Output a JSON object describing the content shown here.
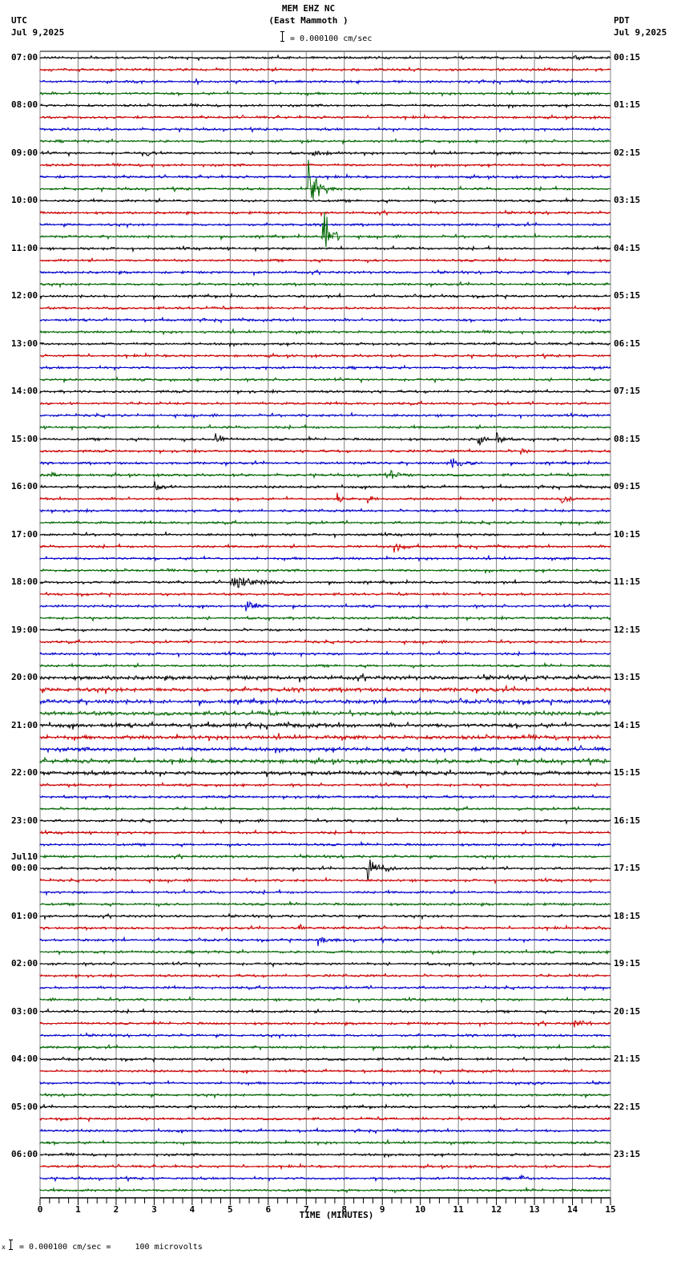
{
  "header": {
    "station": "MEM EHZ NC",
    "location": "(East Mammoth )",
    "scale_text": "= 0.000100 cm/sec",
    "left_tz": "UTC",
    "left_date": "Jul 9,2025",
    "right_tz": "PDT",
    "right_date": "Jul 9,2025"
  },
  "footer": {
    "xlabel": "TIME (MINUTES)",
    "scale_prefix": "x",
    "scale_text": "= 0.000100 cm/sec =     100 microvolts"
  },
  "date_change_label": "Jul10",
  "colors": {
    "trace_cycle": [
      "#000000",
      "#cc0000",
      "#0000cc",
      "#006600"
    ],
    "grid": "#808080",
    "axis": "#000000"
  },
  "chart_data": {
    "type": "line",
    "title": "MEM EHZ NC (East Mammoth ) helicorder",
    "xlabel": "TIME (MINUTES)",
    "ylabel": "",
    "xlim": [
      0,
      15
    ],
    "x_ticks": [
      "0",
      "1",
      "2",
      "3",
      "4",
      "5",
      "6",
      "7",
      "8",
      "9",
      "10",
      "11",
      "12",
      "13",
      "14",
      "15"
    ],
    "traces_per_hour": 4,
    "trace_minutes": 15,
    "left_labels_utc": [
      "07:00",
      "08:00",
      "09:00",
      "10:00",
      "11:00",
      "12:00",
      "13:00",
      "14:00",
      "15:00",
      "16:00",
      "17:00",
      "18:00",
      "19:00",
      "20:00",
      "21:00",
      "22:00",
      "23:00",
      "00:00",
      "01:00",
      "02:00",
      "03:00",
      "04:00",
      "05:00",
      "06:00"
    ],
    "right_labels_pdt": [
      "00:15",
      "01:15",
      "02:15",
      "03:15",
      "04:15",
      "05:15",
      "06:15",
      "07:15",
      "08:15",
      "09:15",
      "10:15",
      "11:15",
      "12:15",
      "13:15",
      "14:15",
      "15:15",
      "16:15",
      "17:15",
      "18:15",
      "19:15",
      "20:15",
      "21:15",
      "22:15",
      "23:15"
    ],
    "amplitude_scale": "0.000100 cm/sec = 100 microvolts",
    "series": [
      {
        "name": "trace colors cycle",
        "values": [
          "black",
          "red",
          "blue",
          "green"
        ]
      }
    ],
    "events": [
      {
        "trace": 0,
        "minute": 14.0,
        "amp": 5,
        "dur": 0.5
      },
      {
        "trace": 8,
        "minute": 2.8,
        "amp": 4,
        "dur": 0.5
      },
      {
        "trace": 8,
        "minute": 7.2,
        "amp": 4,
        "dur": 0.8
      },
      {
        "trace": 11,
        "minute": 7.05,
        "amp": 55,
        "dur": 0.9,
        "type": "spike"
      },
      {
        "trace": 15,
        "minute": 7.4,
        "amp": 40,
        "dur": 0.5,
        "type": "spike"
      },
      {
        "trace": 32,
        "minute": 4.6,
        "amp": 10,
        "dur": 0.5
      },
      {
        "trace": 32,
        "minute": 11.5,
        "amp": 18,
        "dur": 0.4
      },
      {
        "trace": 32,
        "minute": 12.0,
        "amp": 12,
        "dur": 0.4
      },
      {
        "trace": 33,
        "minute": 12.6,
        "amp": 8,
        "dur": 0.4
      },
      {
        "trace": 34,
        "minute": 10.8,
        "amp": 9,
        "dur": 0.7
      },
      {
        "trace": 35,
        "minute": 0.2,
        "amp": 7,
        "dur": 0.4
      },
      {
        "trace": 35,
        "minute": 9.2,
        "amp": 8,
        "dur": 0.6
      },
      {
        "trace": 36,
        "minute": 3.0,
        "amp": 8,
        "dur": 0.5
      },
      {
        "trace": 37,
        "minute": 7.8,
        "amp": 10,
        "dur": 0.4
      },
      {
        "trace": 37,
        "minute": 8.6,
        "amp": 7,
        "dur": 0.3
      },
      {
        "trace": 37,
        "minute": 13.7,
        "amp": 9,
        "dur": 0.4
      },
      {
        "trace": 41,
        "minute": 9.3,
        "amp": 10,
        "dur": 0.6
      },
      {
        "trace": 44,
        "minute": 5.0,
        "amp": 10,
        "dur": 1.5
      },
      {
        "trace": 46,
        "minute": 5.4,
        "amp": 8,
        "dur": 0.6
      },
      {
        "trace": 68,
        "minute": 8.6,
        "amp": 20,
        "dur": 0.8
      },
      {
        "trace": 73,
        "minute": 6.8,
        "amp": 8,
        "dur": 0.2
      },
      {
        "trace": 73,
        "minute": 14.6,
        "amp": 6,
        "dur": 0.3
      },
      {
        "trace": 74,
        "minute": 7.3,
        "amp": 7,
        "dur": 0.6
      },
      {
        "trace": 81,
        "minute": 14.0,
        "amp": 8,
        "dur": 0.5
      },
      {
        "trace": 86,
        "minute": 12.9,
        "amp": 8,
        "dur": 0.3
      },
      {
        "trace": 94,
        "minute": 12.6,
        "amp": 7,
        "dur": 0.4
      }
    ]
  }
}
